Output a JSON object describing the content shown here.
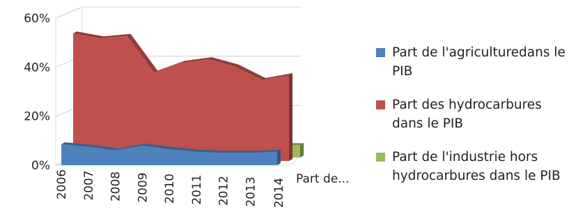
{
  "chart_data": {
    "type": "area",
    "three_d": true,
    "categories": [
      "2006",
      "2007",
      "2008",
      "2009",
      "2010",
      "2011",
      "2012",
      "2013",
      "2014"
    ],
    "depth_axis_label": "Part de...",
    "yaxis": {
      "ticks": [
        "0%",
        "20%",
        "40%",
        "60%"
      ],
      "ylim": [
        0,
        60
      ]
    },
    "grid": true,
    "legend_position": "right",
    "series": [
      {
        "name": "Part de l'agriculturedans le PIB",
        "color": "#4f81bd",
        "values": [
          8.5,
          7.5,
          6.0,
          8.0,
          6.5,
          5.5,
          5.0,
          5.0,
          5.5
        ]
      },
      {
        "name": "Part des hydrocarbures dans le PIB",
        "color": "#c0504d",
        "values": [
          52.0,
          50.0,
          51.0,
          36.0,
          40.0,
          41.5,
          38.5,
          33.0,
          35.0
        ]
      },
      {
        "name": "Part de l'industrie hors hydrocarbures dans le PIB",
        "color": "#9bbb59",
        "values": [
          5.0,
          5.0,
          5.0,
          5.0,
          5.0,
          5.0,
          5.0,
          5.0,
          5.0
        ]
      }
    ]
  }
}
